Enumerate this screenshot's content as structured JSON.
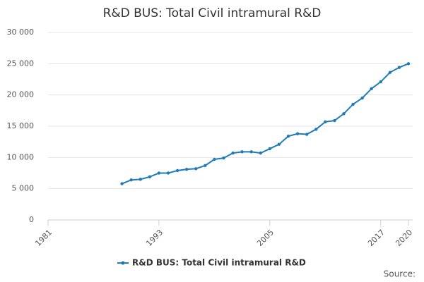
{
  "chart_data": {
    "type": "line",
    "title": "R&D BUS: Total Civil intramural R&D",
    "x": [
      1989,
      1990,
      1991,
      1992,
      1993,
      1994,
      1995,
      1996,
      1997,
      1998,
      1999,
      2000,
      2001,
      2002,
      2003,
      2004,
      2005,
      2006,
      2007,
      2008,
      2009,
      2010,
      2011,
      2012,
      2013,
      2014,
      2015,
      2016,
      2017,
      2018,
      2019,
      2020
    ],
    "series": [
      {
        "name": "R&D BUS: Total Civil intramural R&D",
        "color": "#1f7bb6",
        "values": [
          5800,
          6400,
          6500,
          6900,
          7500,
          7500,
          7900,
          8100,
          8200,
          8700,
          9700,
          9900,
          10700,
          10900,
          10900,
          10700,
          11400,
          12100,
          13400,
          13800,
          13700,
          14500,
          15700,
          15900,
          17000,
          18500,
          19500,
          21000,
          22100,
          23600,
          24400,
          25000
        ]
      }
    ],
    "xlim": [
      1981,
      2020
    ],
    "xticks": [
      1981,
      1993,
      2005,
      2017,
      2020
    ],
    "ylim": [
      0,
      30000
    ],
    "yticks": [
      0,
      {
        "value": 5000,
        "label": "5 000"
      },
      {
        "value": 10000,
        "label": "10 000"
      },
      {
        "value": 15000,
        "label": "15 000"
      },
      {
        "value": 20000,
        "label": "20 000"
      },
      {
        "value": 25000,
        "label": "25 000"
      },
      {
        "value": 30000,
        "label": "30 000"
      }
    ],
    "grid": true,
    "legend": "bottom",
    "source": "Source:"
  }
}
